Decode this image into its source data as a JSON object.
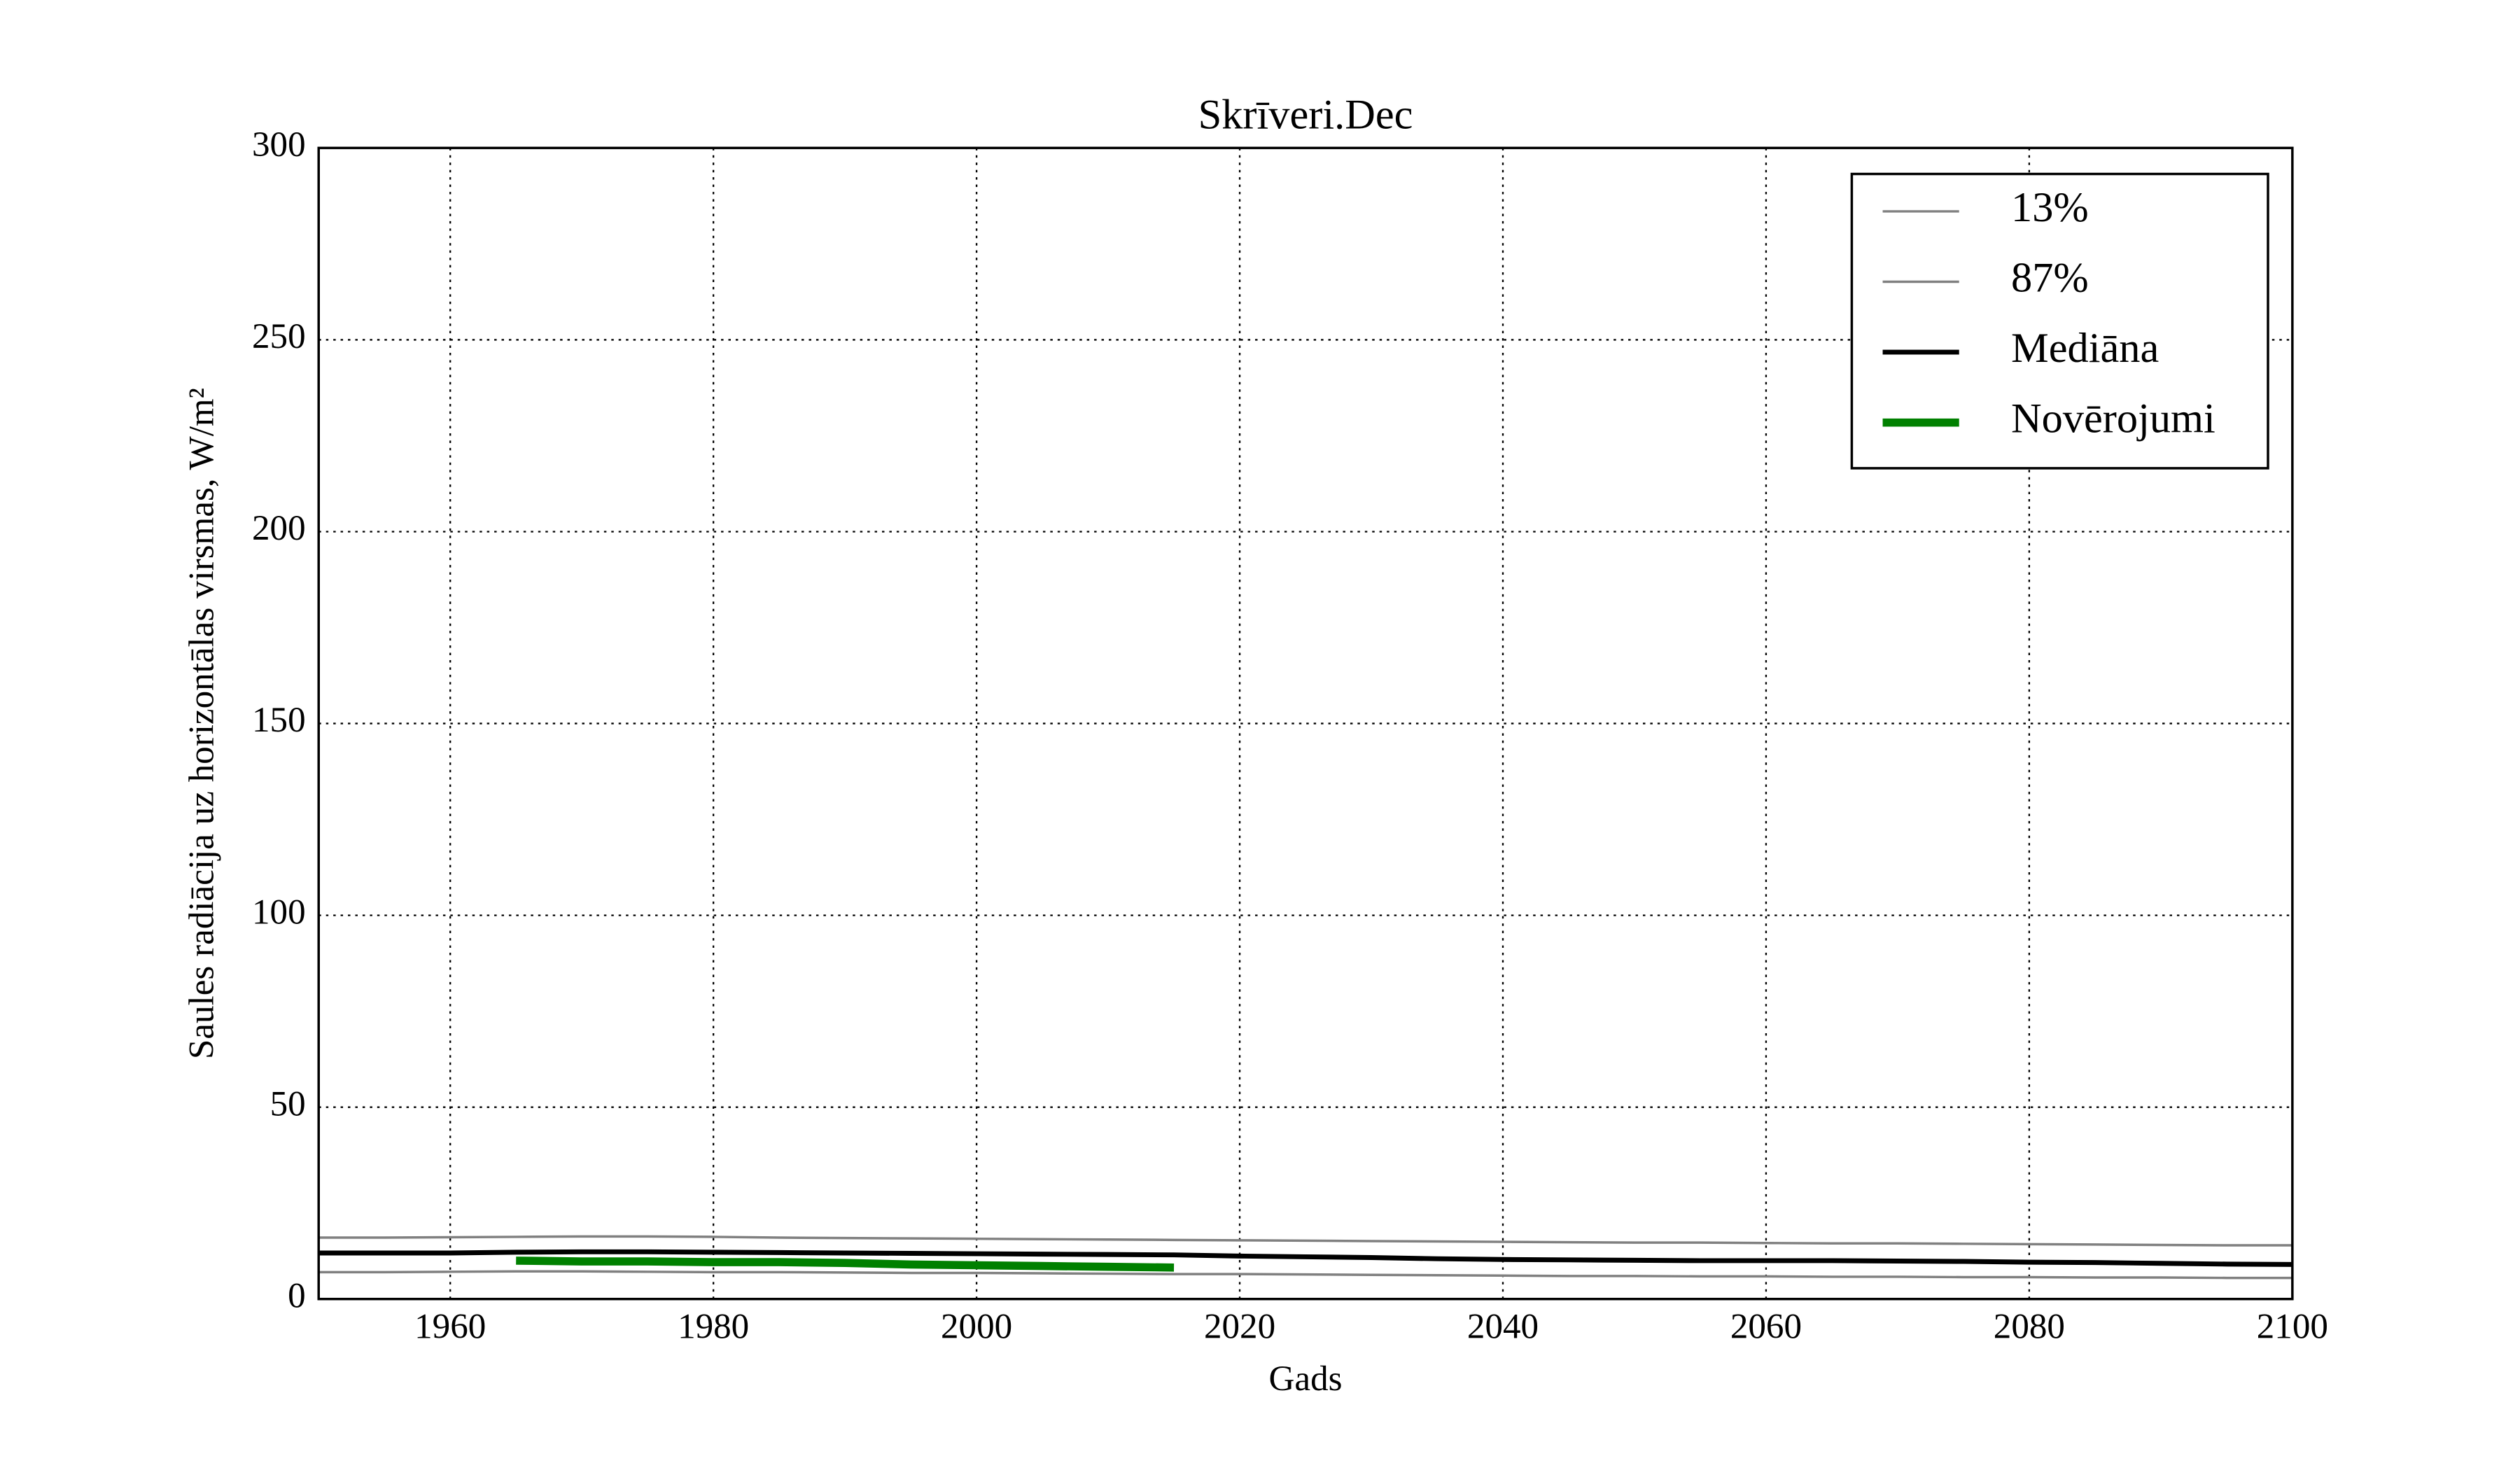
{
  "chart_data": {
    "type": "line",
    "title": "Skrīveri.Dec",
    "xlabel": "Gads",
    "ylabel": "Saules radiācija uz horizontālas virsmas, W/m²",
    "x": [
      1950,
      1955,
      1960,
      1965,
      1970,
      1975,
      1980,
      1985,
      1990,
      1995,
      2000,
      2005,
      2010,
      2015,
      2020,
      2025,
      2030,
      2035,
      2040,
      2045,
      2050,
      2055,
      2060,
      2065,
      2070,
      2075,
      2080,
      2085,
      2090,
      2095,
      2100
    ],
    "series": [
      {
        "name": "13%",
        "color": "#808080",
        "values": [
          7,
          7,
          7.1,
          7.2,
          7.2,
          7.1,
          7,
          7,
          6.9,
          6.8,
          6.8,
          6.7,
          6.6,
          6.5,
          6.5,
          6.4,
          6.3,
          6.2,
          6.1,
          6,
          6,
          5.9,
          5.9,
          5.8,
          5.8,
          5.7,
          5.7,
          5.6,
          5.6,
          5.5,
          5.5
        ]
      },
      {
        "name": "87%",
        "color": "#808080",
        "values": [
          16,
          16,
          16.1,
          16.2,
          16.3,
          16.3,
          16.2,
          16,
          15.9,
          15.8,
          15.7,
          15.6,
          15.5,
          15.4,
          15.3,
          15.2,
          15.1,
          15,
          14.9,
          14.8,
          14.7,
          14.7,
          14.6,
          14.5,
          14.5,
          14.4,
          14.3,
          14.2,
          14.1,
          14,
          14
        ]
      },
      {
        "name": "Mediāna",
        "color": "#000000",
        "values": [
          12,
          12,
          12,
          12.2,
          12.3,
          12.3,
          12.2,
          12.1,
          12,
          11.9,
          11.8,
          11.7,
          11.6,
          11.5,
          11.2,
          11,
          10.8,
          10.5,
          10.3,
          10.2,
          10.1,
          10,
          10,
          10,
          9.9,
          9.8,
          9.6,
          9.5,
          9.3,
          9.1,
          9
        ]
      },
      {
        "name": "Novērojumi",
        "color": "#008000",
        "values": [
          null,
          null,
          null,
          10,
          9.8,
          9.8,
          9.6,
          9.6,
          9.4,
          9,
          8.8,
          8.6,
          8.4,
          8.2,
          null,
          null,
          null,
          null,
          null,
          null,
          null,
          null,
          null,
          null,
          null,
          null,
          null,
          null,
          null,
          null,
          null
        ]
      }
    ],
    "xlim": [
      1950,
      2100
    ],
    "xticks": [
      1960,
      1980,
      2000,
      2020,
      2040,
      2060,
      2080,
      2100
    ],
    "ylim": [
      0,
      300
    ],
    "yticks": [
      0,
      50,
      100,
      150,
      200,
      250,
      300
    ],
    "grid": true,
    "legend": "upper right"
  }
}
